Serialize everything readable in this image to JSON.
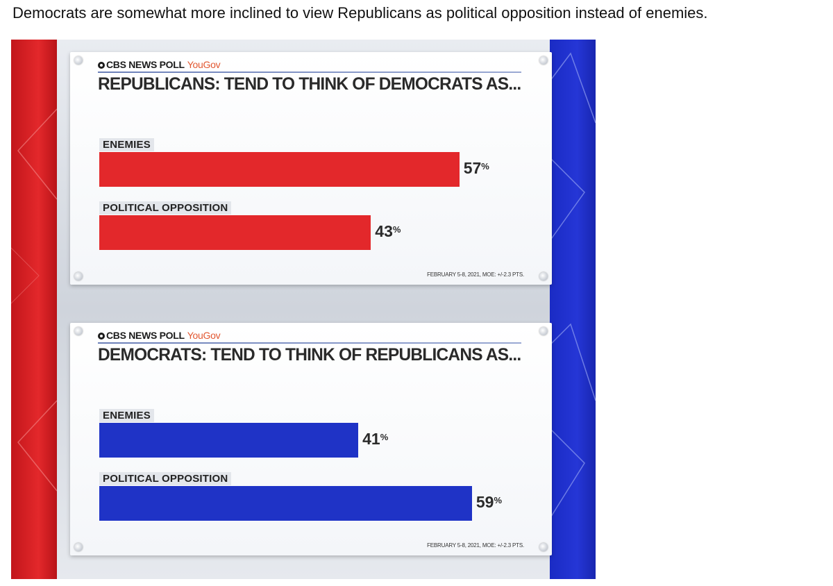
{
  "caption": "Democrats are somewhat more inclined to view Republicans as political opposition instead of enemies.",
  "colors": {
    "republican_bar": "#e3282b",
    "democrat_bar": "#1f33c6"
  },
  "chart_data": [
    {
      "type": "bar",
      "orientation": "horizontal",
      "source": "CBS NEWS POLL",
      "partner": "YouGov",
      "title": "REPUBLICANS: TEND TO THINK OF DEMOCRATS AS...",
      "categories": [
        "ENEMIES",
        "POLITICAL OPPOSITION"
      ],
      "values": [
        57,
        43
      ],
      "value_labels": [
        "57",
        "43"
      ],
      "unit": "%",
      "bar_color": "#e3282b",
      "xlim": [
        0,
        100
      ],
      "grid": false,
      "footnote": "FEBRUARY 5-8, 2021, MOE: +/-2.3 PTS."
    },
    {
      "type": "bar",
      "orientation": "horizontal",
      "source": "CBS NEWS POLL",
      "partner": "YouGov",
      "title": "DEMOCRATS: TEND TO THINK OF REPUBLICANS AS...",
      "categories": [
        "ENEMIES",
        "POLITICAL OPPOSITION"
      ],
      "values": [
        41,
        59
      ],
      "value_labels": [
        "41",
        "59"
      ],
      "unit": "%",
      "bar_color": "#1f33c6",
      "xlim": [
        0,
        100
      ],
      "grid": false,
      "footnote": "FEBRUARY 5-8, 2021, MOE: +/-2.3 PTS."
    }
  ]
}
